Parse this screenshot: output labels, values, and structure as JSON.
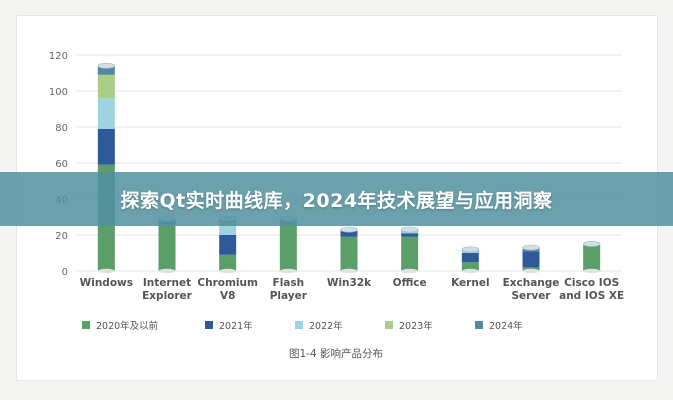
{
  "banner": {
    "title": "探索Qt实时曲线库，2024年技术展望与应用洞察"
  },
  "chart_data": {
    "type": "bar",
    "stacked": true,
    "caption": "图1-4 影响产品分布",
    "ylim": [
      0,
      120
    ],
    "yticks": [
      0,
      20,
      40,
      60,
      80,
      100,
      120
    ],
    "grid": true,
    "legend_position": "bottom",
    "categories": [
      [
        "Windows"
      ],
      [
        "Internet",
        "Explorer"
      ],
      [
        "Chromium",
        "V8"
      ],
      [
        "Flash",
        "Player"
      ],
      [
        "Win32k"
      ],
      [
        "Office"
      ],
      [
        "Kernel"
      ],
      [
        "Exchange",
        "Server"
      ],
      [
        "Cisco IOS",
        "and IOS XE"
      ]
    ],
    "series": [
      {
        "name": "2020年及以前",
        "color": "#5a9e68",
        "values": [
          59,
          26,
          9,
          27,
          19,
          19,
          5,
          2,
          14
        ]
      },
      {
        "name": "2021年",
        "color": "#2e5a99",
        "values": [
          20,
          1,
          11,
          0,
          3,
          2,
          5,
          9,
          0
        ]
      },
      {
        "name": "2022年",
        "color": "#9fd3e3",
        "values": [
          17,
          0,
          5,
          0,
          0,
          1,
          1,
          0,
          0
        ]
      },
      {
        "name": "2023年",
        "color": "#a9cd86",
        "values": [
          13,
          0,
          2,
          0,
          0,
          0,
          0,
          0,
          0
        ]
      },
      {
        "name": "2024年",
        "color": "#5487a1",
        "values": [
          5,
          2,
          2,
          2,
          1,
          1,
          1,
          2,
          1
        ]
      }
    ]
  }
}
